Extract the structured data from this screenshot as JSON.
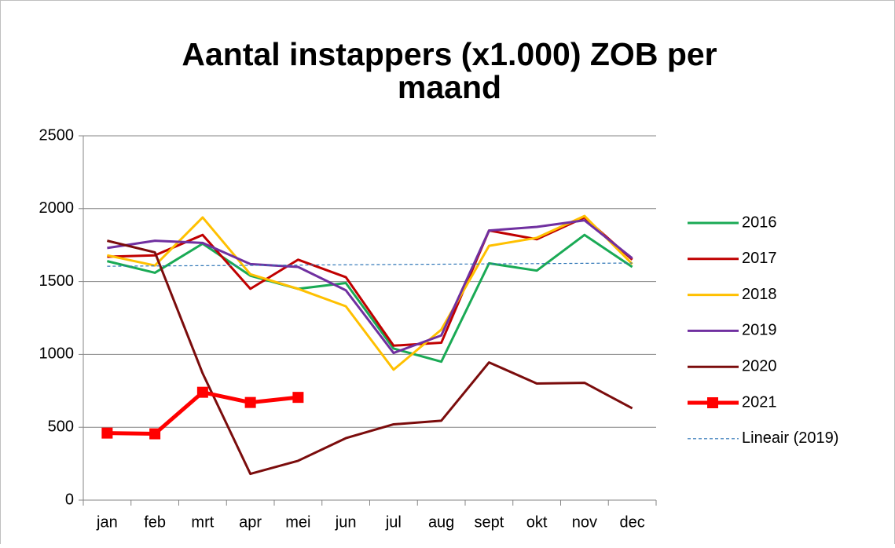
{
  "chart_data": {
    "type": "line",
    "title": [
      "Aantal instappers (x1.000) ZOB per",
      "maand"
    ],
    "categories": [
      "jan",
      "feb",
      "mrt",
      "apr",
      "mei",
      "jun",
      "jul",
      "aug",
      "sept",
      "okt",
      "nov",
      "dec"
    ],
    "ylim": [
      0,
      2500
    ],
    "yticks": [
      0,
      500,
      1000,
      1500,
      2000,
      2500
    ],
    "grid": true,
    "legend": "right",
    "series": [
      {
        "name": "2016",
        "color": "#1aaa55",
        "values": [
          1640,
          1560,
          1760,
          1540,
          1450,
          1490,
          1040,
          950,
          1625,
          1575,
          1820,
          1600
        ]
      },
      {
        "name": "2017",
        "color": "#c00000",
        "values": [
          1670,
          1680,
          1820,
          1450,
          1650,
          1530,
          1060,
          1080,
          1850,
          1790,
          1940,
          1650
        ]
      },
      {
        "name": "2018",
        "color": "#ffc000",
        "values": [
          1680,
          1610,
          1940,
          1550,
          1450,
          1330,
          895,
          1170,
          1745,
          1800,
          1950,
          1620
        ]
      },
      {
        "name": "2019",
        "color": "#7030a0",
        "values": [
          1730,
          1780,
          1765,
          1620,
          1600,
          1440,
          1010,
          1130,
          1850,
          1875,
          1920,
          1660
        ]
      },
      {
        "name": "2020",
        "color": "#7b0c0c",
        "values": [
          1780,
          1700,
          870,
          180,
          270,
          425,
          520,
          545,
          945,
          800,
          805,
          630
        ]
      },
      {
        "name": "2021",
        "color": "#ff0000",
        "marker": "square",
        "values": [
          460,
          455,
          740,
          670,
          705,
          null,
          null,
          null,
          null,
          null,
          null,
          null
        ]
      },
      {
        "name": "Lineair (2019)",
        "color": "#2e75b6",
        "dashed": true,
        "values": [
          1605,
          1607,
          1609,
          1611,
          1613,
          1615,
          1617,
          1619,
          1621,
          1623,
          1625,
          1627
        ]
      }
    ]
  }
}
